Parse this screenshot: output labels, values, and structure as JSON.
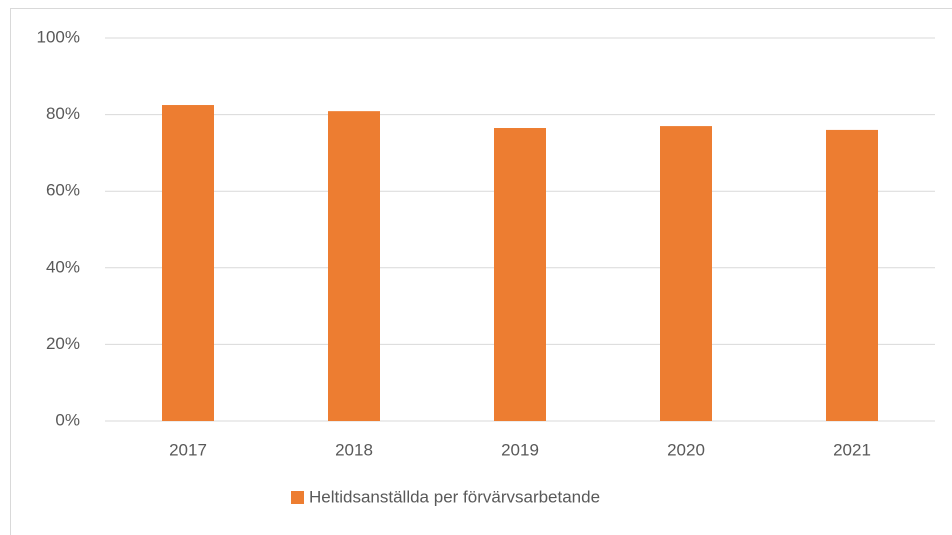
{
  "chart_data": {
    "type": "bar",
    "categories": [
      "2017",
      "2018",
      "2019",
      "2020",
      "2021"
    ],
    "series": [
      {
        "name": "Heltidsanställda per förvärvsarbetande",
        "color": "#ed7d31",
        "values": [
          82.5,
          80.9,
          76.5,
          77.0,
          76.0
        ]
      }
    ],
    "ylim": [
      0,
      100
    ],
    "yticks": [
      {
        "value": 0,
        "label": "0%"
      },
      {
        "value": 20,
        "label": "20%"
      },
      {
        "value": 40,
        "label": "40%"
      },
      {
        "value": 60,
        "label": "60%"
      },
      {
        "value": 80,
        "label": "80%"
      },
      {
        "value": 100,
        "label": "100%"
      }
    ],
    "grid": true,
    "legend": "bottom"
  }
}
